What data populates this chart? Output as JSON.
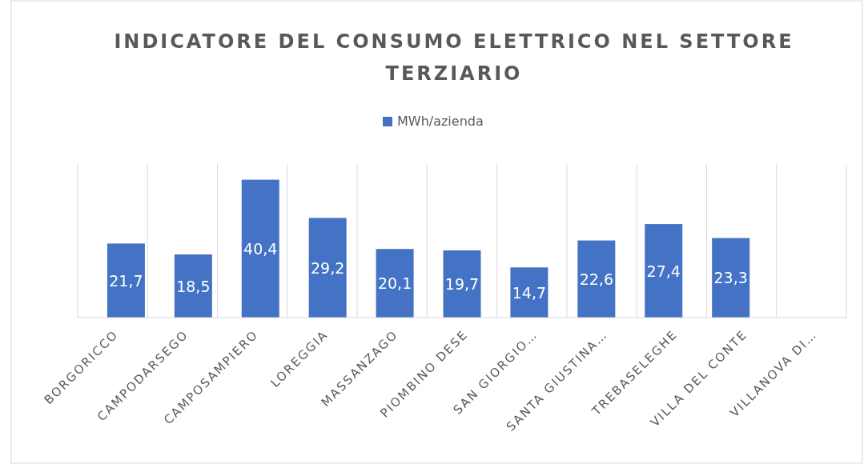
{
  "chart_data": {
    "type": "bar",
    "title": "INDICATORE DEL CONSUMO ELETTRICO NEL SETTORE TERZIARIO",
    "categories": [
      "BORGORICCO",
      "CAMPODARSEGO",
      "CAMPOSAMPIERO",
      "LOREGGIA",
      "MASSANZAGO",
      "PIOMBINO DESE",
      "SAN GIORGIO…",
      "SANTA GIUSTINA…",
      "TREBASELEGHE",
      "VILLA DEL CONTE",
      "VILLANOVA DI…"
    ],
    "series": [
      {
        "name": "MWh/azienda",
        "color": "#4472c4",
        "values": [
          21.7,
          18.5,
          40.4,
          29.2,
          20.1,
          19.7,
          14.7,
          22.6,
          27.4,
          23.3,
          0
        ],
        "value_labels": [
          "21,7",
          "18,5",
          "40,4",
          "29,2",
          "20,1",
          "19,7",
          "14,7",
          "22,6",
          "27,4",
          "23,3",
          null
        ]
      }
    ],
    "ylim": [
      0,
      45
    ],
    "tick_labels": "x",
    "grid": "x",
    "legend": "top"
  }
}
